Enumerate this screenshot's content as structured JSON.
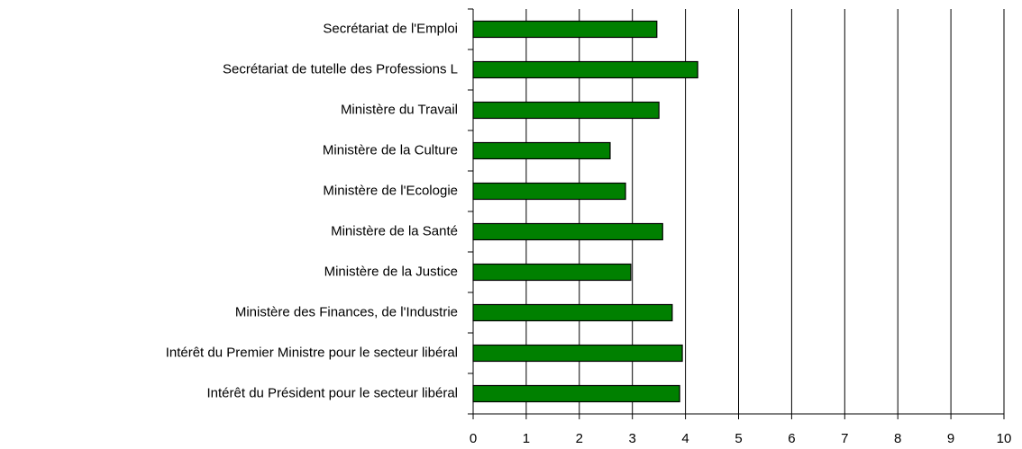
{
  "chart_data": {
    "type": "hbar",
    "categories": [
      "Secrétariat de l'Emploi",
      "Secrétariat de tutelle des Professions L",
      "Ministère du Travail",
      "Ministère de la Culture",
      "Ministère de l'Ecologie",
      "Ministère de la Santé",
      "Ministère de la Justice",
      "Ministère des Finances, de l'Industrie",
      "Intérêt du Premier Ministre pour le secteur libéral",
      "Intérêt du Président pour le secteur libéral"
    ],
    "values": [
      3.46,
      4.23,
      3.5,
      2.58,
      2.87,
      3.57,
      2.97,
      3.75,
      3.94,
      3.89
    ],
    "color": "#008000",
    "xlim": [
      0,
      10
    ],
    "xticks": [
      0,
      1,
      2,
      3,
      4,
      5,
      6,
      7,
      8,
      9,
      10
    ],
    "grid": true
  }
}
